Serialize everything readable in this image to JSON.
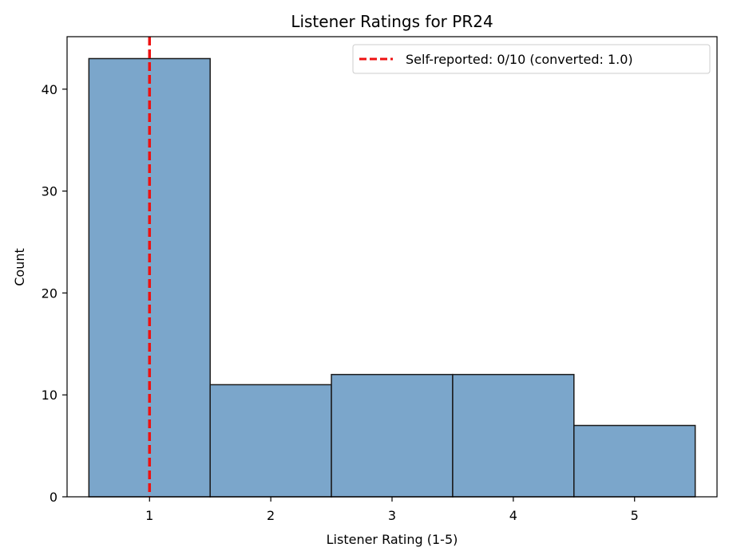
{
  "chart_data": {
    "type": "bar",
    "title": "Listener Ratings for PR24",
    "xlabel": "Listener Rating (1-5)",
    "ylabel": "Count",
    "categories": [
      1,
      2,
      3,
      4,
      5
    ],
    "values": [
      43,
      11,
      12,
      12,
      7
    ],
    "xlim": [
      0.32,
      5.68
    ],
    "ylim": [
      0,
      45.15
    ],
    "xticks": [
      1,
      2,
      3,
      4,
      5
    ],
    "yticks": [
      0,
      10,
      20,
      30,
      40
    ],
    "grid": false,
    "bar_color": "#7ba6cb",
    "bar_edge_color": "#1a1a1a",
    "reference_line": {
      "x": 1.0,
      "color": "#ee1111",
      "style": "dashed",
      "label": "Self-reported: 0/10 (converted: 1.0)"
    },
    "legend": {
      "position": "top-right"
    }
  }
}
